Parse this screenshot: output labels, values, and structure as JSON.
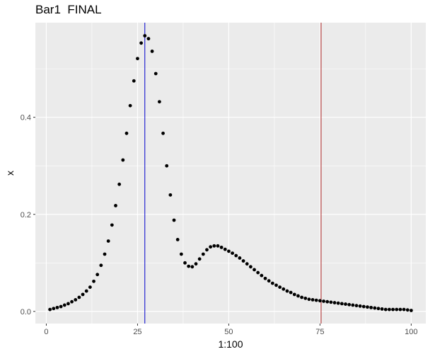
{
  "chart_data": {
    "type": "scatter",
    "title": "Bar1  FINAL",
    "xlabel": "1:100",
    "ylabel": "x",
    "xlim": [
      -3,
      104
    ],
    "ylim": [
      -0.025,
      0.595
    ],
    "x_ticks": [
      0,
      25,
      50,
      75,
      100
    ],
    "x_tick_labels": [
      "0",
      "25",
      "50",
      "75",
      "100"
    ],
    "y_ticks": [
      0.0,
      0.2,
      0.4
    ],
    "y_tick_labels": [
      "0.0",
      "0.2",
      "0.4"
    ],
    "grid": true,
    "panel_background": "#ebebeb",
    "grid_color": "#ffffff",
    "point_color": "#000000",
    "vlines": [
      {
        "x": 27,
        "color": "#0000cc"
      },
      {
        "x": 75.3,
        "color": "#aa2222"
      }
    ],
    "x": [
      1,
      2,
      3,
      4,
      5,
      6,
      7,
      8,
      9,
      10,
      11,
      12,
      13,
      14,
      15,
      16,
      17,
      18,
      19,
      20,
      21,
      22,
      23,
      24,
      25,
      26,
      27,
      28,
      29,
      30,
      31,
      32,
      33,
      34,
      35,
      36,
      37,
      38,
      39,
      40,
      41,
      42,
      43,
      44,
      45,
      46,
      47,
      48,
      49,
      50,
      51,
      52,
      53,
      54,
      55,
      56,
      57,
      58,
      59,
      60,
      61,
      62,
      63,
      64,
      65,
      66,
      67,
      68,
      69,
      70,
      71,
      72,
      73,
      74,
      75,
      76,
      77,
      78,
      79,
      80,
      81,
      82,
      83,
      84,
      85,
      86,
      87,
      88,
      89,
      90,
      91,
      92,
      93,
      94,
      95,
      96,
      97,
      98,
      99,
      100
    ],
    "values": [
      0.004,
      0.006,
      0.008,
      0.01,
      0.013,
      0.016,
      0.02,
      0.024,
      0.029,
      0.035,
      0.042,
      0.05,
      0.062,
      0.076,
      0.095,
      0.118,
      0.145,
      0.178,
      0.218,
      0.262,
      0.312,
      0.367,
      0.424,
      0.475,
      0.521,
      0.553,
      0.568,
      0.562,
      0.536,
      0.49,
      0.432,
      0.367,
      0.3,
      0.24,
      0.188,
      0.148,
      0.118,
      0.1,
      0.093,
      0.092,
      0.098,
      0.108,
      0.118,
      0.127,
      0.133,
      0.135,
      0.135,
      0.132,
      0.128,
      0.124,
      0.12,
      0.115,
      0.11,
      0.104,
      0.098,
      0.092,
      0.086,
      0.08,
      0.074,
      0.068,
      0.063,
      0.058,
      0.054,
      0.05,
      0.046,
      0.042,
      0.039,
      0.035,
      0.032,
      0.029,
      0.027,
      0.025,
      0.024,
      0.023,
      0.022,
      0.021,
      0.02,
      0.019,
      0.018,
      0.017,
      0.016,
      0.015,
      0.014,
      0.013,
      0.012,
      0.011,
      0.01,
      0.009,
      0.008,
      0.007,
      0.006,
      0.005,
      0.004,
      0.004,
      0.004,
      0.004,
      0.004,
      0.004,
      0.003,
      0.002
    ]
  }
}
